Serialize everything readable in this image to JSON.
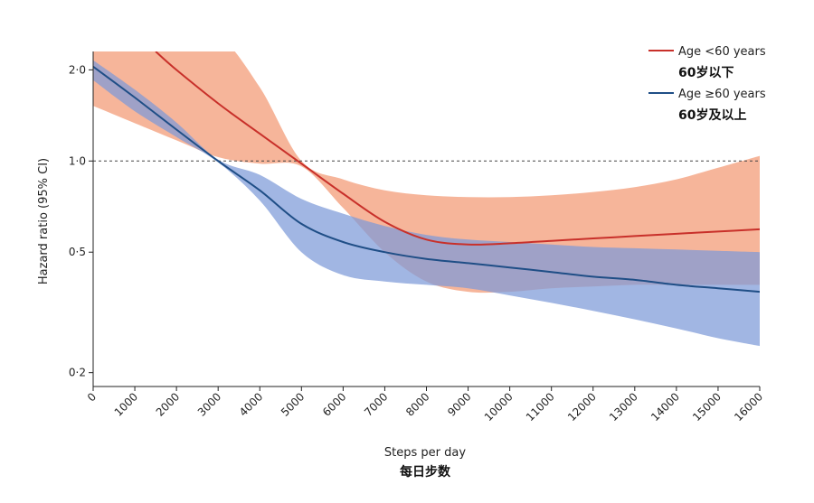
{
  "chart_data": {
    "type": "line",
    "xlabel": "Steps per day",
    "xlabel_cn": "每日步数",
    "ylabel": "Hazard ratio (95% CI)",
    "y_scale": "log",
    "ylim": [
      0.18,
      2.3
    ],
    "xlim": [
      0,
      16000
    ],
    "x_ticks": [
      0,
      1000,
      2000,
      3000,
      4000,
      5000,
      6000,
      7000,
      8000,
      9000,
      10000,
      11000,
      12000,
      13000,
      14000,
      15000,
      16000
    ],
    "y_ticks": [
      0.2,
      0.5,
      1.0,
      2.0
    ],
    "y_tick_labels": [
      "0·2",
      "0·5",
      "1·0",
      "2·0"
    ],
    "reference_line": 1.0,
    "legend_position": "top-right",
    "series": [
      {
        "name": "Age <60 years",
        "name_cn": "60岁以下",
        "color": "#c8302a",
        "band_color": "#f39c78",
        "x": [
          1500,
          2000,
          3000,
          4000,
          5000,
          6000,
          7000,
          8000,
          9000,
          10000,
          11000,
          12000,
          13000,
          14000,
          15000,
          16000
        ],
        "y": [
          2.3,
          2.0,
          1.55,
          1.23,
          0.98,
          0.78,
          0.63,
          0.55,
          0.53,
          0.535,
          0.545,
          0.555,
          0.565,
          0.575,
          0.585,
          0.595
        ],
        "ci_x": [
          0,
          2000,
          3000,
          4000,
          5000,
          6000,
          7000,
          8000,
          9000,
          10000,
          11000,
          12000,
          13000,
          14000,
          15000,
          16000
        ],
        "lower": [
          1.52,
          1.17,
          1.03,
          0.98,
          0.96,
          0.7,
          0.5,
          0.4,
          0.37,
          0.37,
          0.38,
          0.385,
          0.39,
          0.39,
          0.39,
          0.39
        ],
        "upper": [
          2.6,
          2.6,
          2.6,
          1.75,
          1.0,
          0.87,
          0.8,
          0.77,
          0.76,
          0.76,
          0.77,
          0.79,
          0.82,
          0.87,
          0.95,
          1.04
        ]
      },
      {
        "name": "Age ≥60 years",
        "name_cn": "60岁及以上",
        "color": "#1f4e86",
        "band_color": "#7d9ad8",
        "x": [
          0,
          1000,
          2000,
          3000,
          4000,
          5000,
          6000,
          7000,
          8000,
          9000,
          10000,
          11000,
          12000,
          13000,
          14000,
          15000,
          16000
        ],
        "y": [
          2.05,
          1.62,
          1.27,
          1.0,
          0.8,
          0.62,
          0.54,
          0.5,
          0.475,
          0.46,
          0.445,
          0.43,
          0.415,
          0.405,
          0.39,
          0.38,
          0.37
        ],
        "lower": [
          1.85,
          1.46,
          1.2,
          0.99,
          0.74,
          0.5,
          0.42,
          0.4,
          0.39,
          0.38,
          0.36,
          0.34,
          0.32,
          0.3,
          0.28,
          0.26,
          0.245
        ],
        "upper": [
          2.15,
          1.72,
          1.34,
          1.01,
          0.9,
          0.75,
          0.67,
          0.61,
          0.57,
          0.55,
          0.54,
          0.53,
          0.52,
          0.515,
          0.51,
          0.505,
          0.5
        ]
      }
    ]
  }
}
